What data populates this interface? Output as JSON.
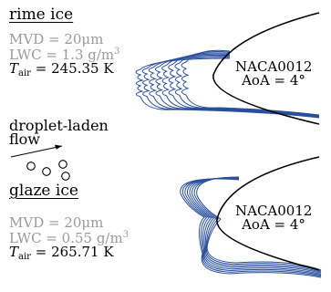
{
  "rime": {
    "heading": "rime ice",
    "mvd": "MVD = 20μm",
    "lwc_base": "LWC = 1.3 g/m",
    "lwc_exp": "3",
    "t_symbol": "T",
    "t_sub": "air",
    "t_value": " = 245.35 K",
    "airfoil_name": "NACA0012",
    "aoa": "AoA = 4°"
  },
  "flow": {
    "label_line1": "droplet-laden",
    "label_line2": "flow"
  },
  "glaze": {
    "heading": "glaze ice",
    "mvd": "MVD = 20μm",
    "lwc_base": "LWC = 0.55 g/m",
    "lwc_exp": "3",
    "t_symbol": "T",
    "t_sub": "air",
    "t_value": " = 265.71 K",
    "airfoil_name": "NACA0012",
    "aoa": "AoA = 4°"
  },
  "colors": {
    "ice": "#2a4f9e",
    "airfoil": "#000000",
    "muted_text": "#9a9a9a"
  }
}
